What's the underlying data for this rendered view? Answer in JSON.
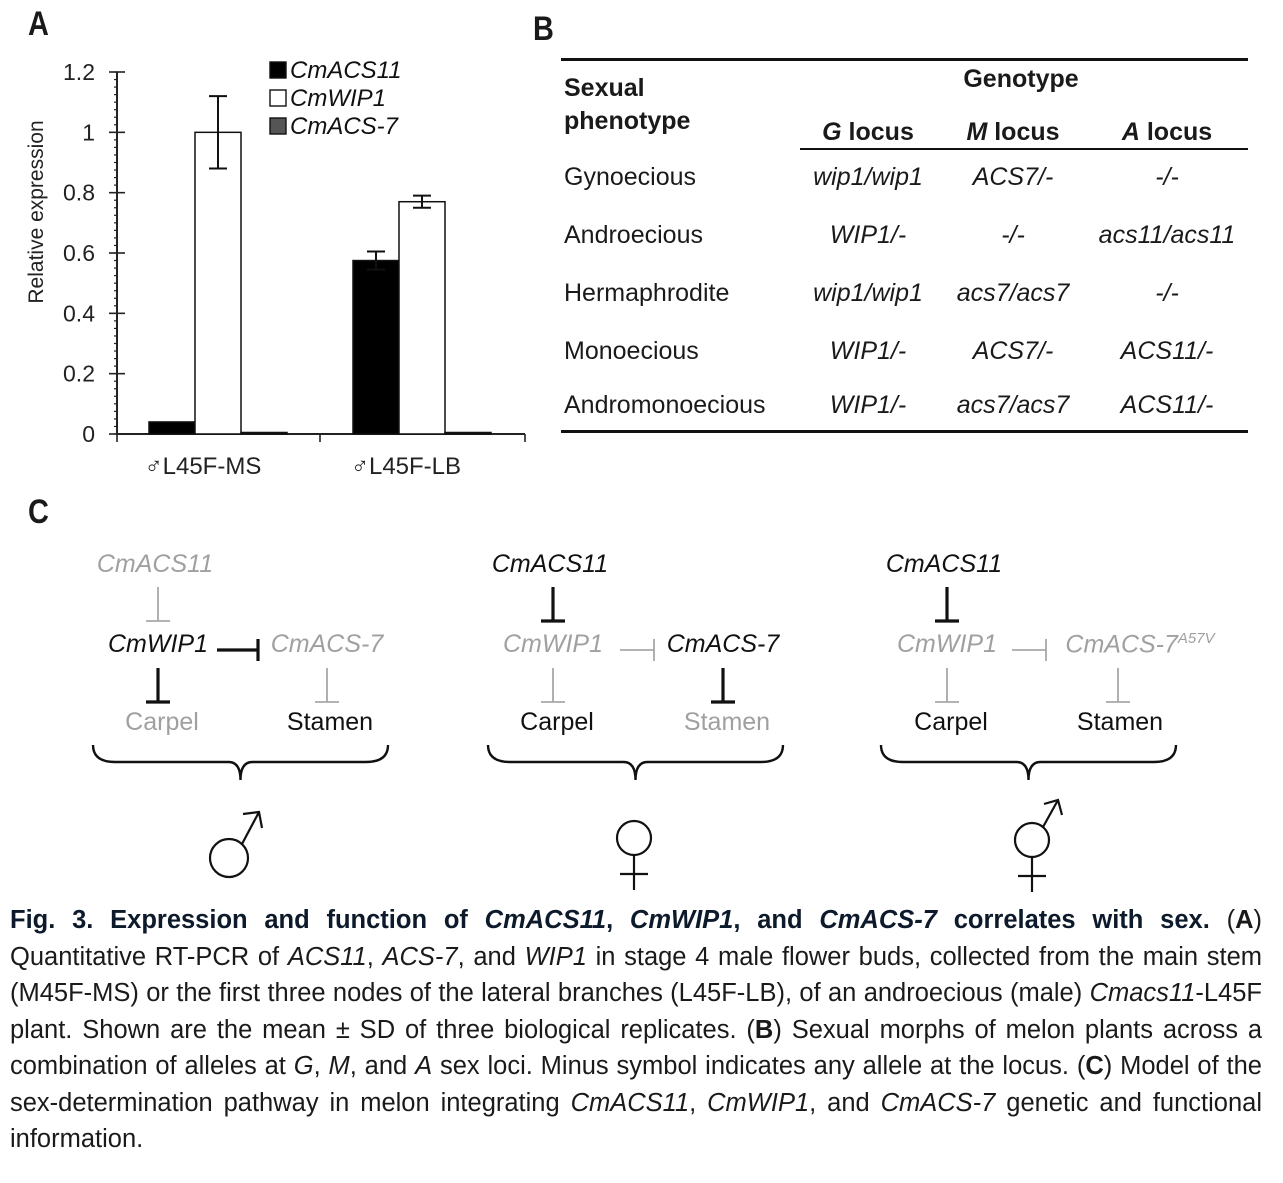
{
  "panels": {
    "a": "A",
    "b": "B",
    "c": "C"
  },
  "chart_data": {
    "type": "bar",
    "categories": [
      "♂L45F-MS",
      "♂L45F-LB"
    ],
    "series": [
      {
        "name": "CmACS11",
        "values": [
          0.04,
          0.575
        ],
        "errors": [
          0,
          0.03
        ],
        "color": "#000000"
      },
      {
        "name": "CmWIP1",
        "values": [
          1.0,
          0.77
        ],
        "errors": [
          0.12,
          0.02
        ],
        "color": "#ffffff"
      },
      {
        "name": "CmACS-7",
        "values": [
          0.005,
          0.005
        ],
        "errors": [
          0,
          0
        ],
        "color": "#555555"
      }
    ],
    "ylabel": "Relative expression",
    "ylim": [
      0,
      1.2
    ],
    "yticks": [
      "0",
      "0.2",
      "0.4",
      "0.6",
      "0.8",
      "1",
      "1.2"
    ],
    "legend_position": "top-center"
  },
  "table": {
    "header_left": [
      "Sexual",
      "phenotype"
    ],
    "group_header": "Genotype",
    "columns": [
      "G locus",
      "M locus",
      "A locus"
    ],
    "rows": [
      {
        "phenotype": "Gynoecious",
        "g": "wip1/wip1",
        "m": "ACS7/-",
        "a": "-/-"
      },
      {
        "phenotype": "Androecious",
        "g": "WIP1/-",
        "m": "-/-",
        "a": "acs11/acs11"
      },
      {
        "phenotype": "Hermaphrodite",
        "g": "wip1/wip1",
        "m": "acs7/acs7",
        "a": "-/-"
      },
      {
        "phenotype": "Monoecious",
        "g": "WIP1/-",
        "m": "ACS7/-",
        "a": "ACS11/-"
      },
      {
        "phenotype": "Andromonoecious",
        "g": "WIP1/-",
        "m": "acs7/acs7",
        "a": "ACS11/-"
      }
    ]
  },
  "models": [
    {
      "acs11": "CmACS11",
      "wip1": "CmWIP1",
      "acs7": "CmACS-7",
      "acs7_sup": "",
      "carpel": "Carpel",
      "stamen": "Stamen",
      "sex_symbol": "♂",
      "active": {
        "acs11": false,
        "wip1": true,
        "acs7": false,
        "carpel": false,
        "stamen": true
      }
    },
    {
      "acs11": "CmACS11",
      "wip1": "CmWIP1",
      "acs7": "CmACS-7",
      "acs7_sup": "",
      "carpel": "Carpel",
      "stamen": "Stamen",
      "sex_symbol": "♀",
      "active": {
        "acs11": true,
        "wip1": false,
        "acs7": true,
        "carpel": true,
        "stamen": false
      }
    },
    {
      "acs11": "CmACS11",
      "wip1": "CmWIP1",
      "acs7": "CmACS-7",
      "acs7_sup": "A57V",
      "carpel": "Carpel",
      "stamen": "Stamen",
      "sex_symbol": "⚥",
      "active": {
        "acs11": true,
        "wip1": false,
        "acs7": false,
        "carpel": true,
        "stamen": true
      }
    }
  ],
  "caption": {
    "title": "Fig. 3. Expression and function of CmACS11, CmWIP1, and CmACS-7 correlates with sex.",
    "a_label": "A",
    "a_text": "Quantitative RT-PCR of ACS11, ACS-7, and WIP1 in stage 4 male flower buds, collected from the main stem (M45F-MS) or the first three nodes of the lateral branches (L45F-LB), of an androecious (male) Cmacs11-L45F plant. Shown are the mean ± SD of three biological replicates.",
    "b_label": "B",
    "b_text": "Sexual morphs of melon plants across a combination of alleles at G, M, and A sex loci. Minus symbol indicates any allele at the locus.",
    "c_label": "C",
    "c_text": "Model of the sex-determination pathway in melon integrating CmACS11, CmWIP1, and CmACS-7 genetic and functional information."
  }
}
